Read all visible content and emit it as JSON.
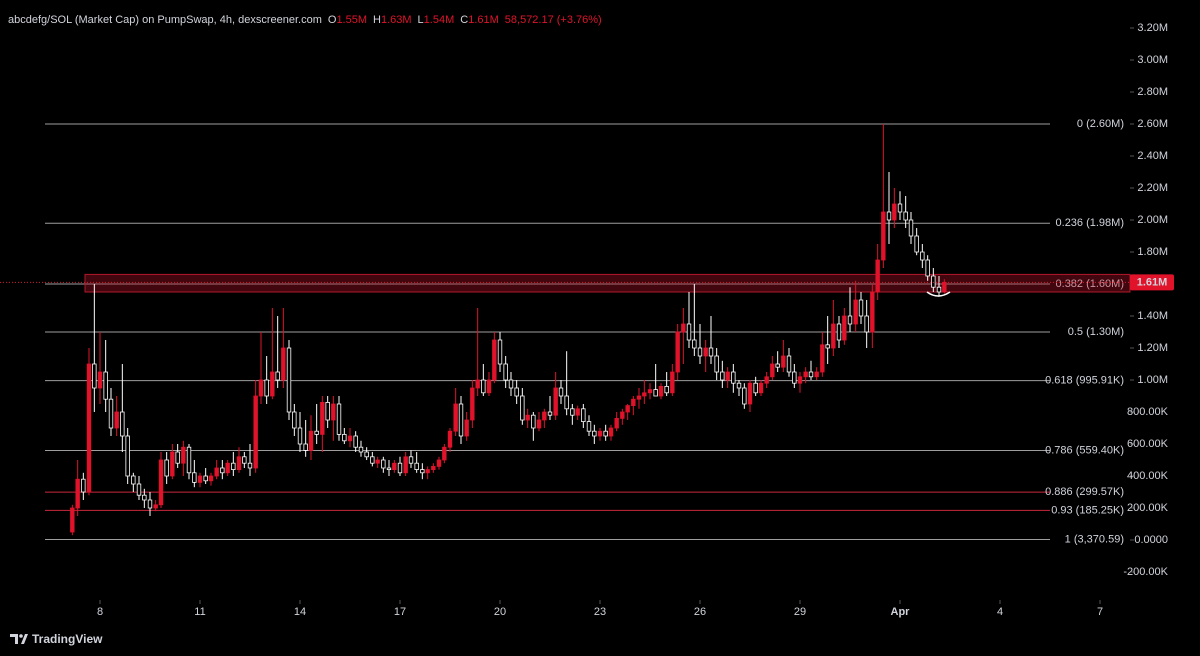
{
  "chart_data": {
    "type": "candlestick",
    "title": "abcdefg/SOL (Market Cap) on PumpSwap, 4h, dexscreener.com",
    "ohlc_labels": [
      {
        "key": "O",
        "text": "1.55M"
      },
      {
        "key": "H",
        "text": "1.63M"
      },
      {
        "key": "L",
        "text": "1.54M"
      },
      {
        "key": "C",
        "text": "1.61M"
      }
    ],
    "change": "58,572.17 (+3.76%)",
    "branding": "TradingView",
    "up_color": "#e0132b",
    "down_color": "#ffffff",
    "grid": false,
    "xlim": [
      5,
      38.9
    ],
    "xticks": [
      8,
      11,
      14,
      17,
      20,
      23,
      26,
      29,
      {
        "value": 32,
        "label": "Apr"
      },
      {
        "value": 35,
        "label": "4"
      },
      {
        "value": 38,
        "label": "7"
      }
    ],
    "ylim": [
      -375000.0,
      3375000.0
    ],
    "yticks": [
      {
        "value": 3200000.0,
        "label": "3.20M"
      },
      {
        "value": 3000000.0,
        "label": "3.00M"
      },
      {
        "value": 2800000.0,
        "label": "2.80M"
      },
      {
        "value": 2600000.0,
        "label": "2.60M"
      },
      {
        "value": 2400000.0,
        "label": "2.40M"
      },
      {
        "value": 2200000.0,
        "label": "2.20M"
      },
      {
        "value": 2000000.0,
        "label": "2.00M"
      },
      {
        "value": 1800000.0,
        "label": "1.80M"
      },
      {
        "value": 1400000.0,
        "label": "1.40M"
      },
      {
        "value": 1200000.0,
        "label": "1.20M"
      },
      {
        "value": 1000000.0,
        "label": "1.00M"
      },
      {
        "value": 800000.0,
        "label": "800.00K"
      },
      {
        "value": 600000.0,
        "label": "600.00K"
      },
      {
        "value": 400000.0,
        "label": "400.00K"
      },
      {
        "value": 200000.0,
        "label": "200.00K"
      },
      {
        "value": 0,
        "label": "0.0000"
      },
      {
        "value": -200000.0,
        "label": "-200.00K"
      }
    ],
    "fib_levels": [
      {
        "value": 2600000.0,
        "label": "0 (2.60M)",
        "color": "#9e9e9e"
      },
      {
        "value": 1980000.0,
        "label": "0.236 (1.98M)",
        "color": "#9e9e9e"
      },
      {
        "value": 1600000.0,
        "label": "0.382 (1.60M)",
        "color": "#9e9e9e"
      },
      {
        "value": 1300000.0,
        "label": "0.5 (1.30M)",
        "color": "#9e9e9e"
      },
      {
        "value": 995910,
        "label": "0.618 (995.91K)",
        "color": "#9e9e9e"
      },
      {
        "value": 559400,
        "label": "0.786 (559.40K)",
        "color": "#9e9e9e"
      },
      {
        "value": 299570,
        "label": "0.886 (299.57K)",
        "color": "#c8283c"
      },
      {
        "value": 185250,
        "label": "0.93 (185.25K)",
        "color": "#c8283c"
      },
      {
        "value": 3370.59,
        "label": "1 (3,370.59)",
        "color": "#9e9e9e"
      }
    ],
    "zone": [
      1550000.0,
      1660000.0
    ],
    "last_price": {
      "value": 1610000.0,
      "label": "1.61M"
    },
    "x": [
      7.17,
      7.33,
      7.5,
      7.67,
      7.83,
      8,
      8.17,
      8.33,
      8.5,
      8.67,
      8.83,
      9,
      9.17,
      9.33,
      9.5,
      9.67,
      9.83,
      10,
      10.17,
      10.33,
      10.5,
      10.67,
      10.83,
      11,
      11.17,
      11.33,
      11.5,
      11.67,
      11.83,
      12,
      12.17,
      12.33,
      12.5,
      12.67,
      12.83,
      13,
      13.17,
      13.33,
      13.5,
      13.67,
      13.83,
      14,
      14.17,
      14.33,
      14.5,
      14.67,
      14.83,
      15,
      15.17,
      15.33,
      15.5,
      15.67,
      15.83,
      16,
      16.17,
      16.33,
      16.5,
      16.67,
      16.83,
      17,
      17.17,
      17.33,
      17.5,
      17.67,
      17.83,
      18,
      18.17,
      18.33,
      18.5,
      18.67,
      18.83,
      19,
      19.17,
      19.33,
      19.5,
      19.67,
      19.83,
      20,
      20.17,
      20.33,
      20.5,
      20.67,
      20.83,
      21,
      21.17,
      21.33,
      21.5,
      21.67,
      21.83,
      22,
      22.17,
      22.33,
      22.5,
      22.67,
      22.83,
      23,
      23.17,
      23.33,
      23.5,
      23.67,
      23.83,
      24,
      24.17,
      24.33,
      24.5,
      24.67,
      24.83,
      25,
      25.17,
      25.33,
      25.5,
      25.67,
      25.83,
      26,
      26.17,
      26.33,
      26.5,
      26.67,
      26.83,
      27,
      27.17,
      27.33,
      27.5,
      27.67,
      27.83,
      28,
      28.17,
      28.33,
      28.5,
      28.67,
      28.83,
      29,
      29.17,
      29.33,
      29.5,
      29.67,
      29.83,
      30,
      30.17,
      30.33,
      30.5,
      30.67,
      30.83,
      31,
      31.17,
      31.33,
      31.5,
      31.67,
      31.83,
      32,
      32.17,
      32.33,
      32.5,
      32.67,
      32.83,
      33,
      33.17,
      33.33
    ],
    "ohlc": [
      [
        50000.0,
        220000.0,
        30000.0,
        200000.0
      ],
      [
        200000.0,
        500000.0,
        150000.0,
        380000.0
      ],
      [
        380000.0,
        420000.0,
        250000.0,
        300000.0
      ],
      [
        300000.0,
        1200000.0,
        280000.0,
        1100000.0
      ],
      [
        1100000.0,
        1600000.0,
        800000.0,
        950000.0
      ],
      [
        950000.0,
        1300000.0,
        850000.0,
        1050000.0
      ],
      [
        1050000.0,
        1250000.0,
        800000.0,
        880000.0
      ],
      [
        880000.0,
        950000.0,
        650000.0,
        700000.0
      ],
      [
        700000.0,
        900000.0,
        650000.0,
        800000.0
      ],
      [
        800000.0,
        1100000.0,
        550000.0,
        650000.0
      ],
      [
        650000.0,
        700000.0,
        350000.0,
        400000.0
      ],
      [
        400000.0,
        420000.0,
        300000.0,
        350000.0
      ],
      [
        350000.0,
        400000.0,
        250000.0,
        280000.0
      ],
      [
        280000.0,
        320000.0,
        200000.0,
        250000.0
      ],
      [
        250000.0,
        300000.0,
        150000.0,
        200000.0
      ],
      [
        200000.0,
        250000.0,
        180000.0,
        220000.0
      ],
      [
        220000.0,
        550000.0,
        200000.0,
        500000.0
      ],
      [
        500000.0,
        550000.0,
        350000.0,
        400000.0
      ],
      [
        400000.0,
        600000.0,
        380000.0,
        550000.0
      ],
      [
        550000.0,
        600000.0,
        450000.0,
        480000.0
      ],
      [
        480000.0,
        620000.0,
        400000.0,
        580000.0
      ],
      [
        580000.0,
        600000.0,
        380000.0,
        420000.0
      ],
      [
        420000.0,
        500000.0,
        330000.0,
        360000.0
      ],
      [
        360000.0,
        420000.0,
        330000.0,
        400000.0
      ],
      [
        400000.0,
        450000.0,
        350000.0,
        370000.0
      ],
      [
        370000.0,
        420000.0,
        340000.0,
        400000.0
      ],
      [
        400000.0,
        500000.0,
        380000.0,
        450000.0
      ],
      [
        450000.0,
        500000.0,
        380000.0,
        420000.0
      ],
      [
        420000.0,
        500000.0,
        400000.0,
        480000.0
      ],
      [
        480000.0,
        550000.0,
        400000.0,
        440000.0
      ],
      [
        440000.0,
        580000.0,
        420000.0,
        520000.0
      ],
      [
        520000.0,
        550000.0,
        450000.0,
        480000.0
      ],
      [
        480000.0,
        600000.0,
        400000.0,
        450000.0
      ],
      [
        450000.0,
        1000000.0,
        420000.0,
        900000.0
      ],
      [
        900000.0,
        1300000.0,
        850000.0,
        1000000.0
      ],
      [
        1000000.0,
        1150000.0,
        850000.0,
        900000.0
      ],
      [
        900000.0,
        1450000.0,
        880000.0,
        1050000.0
      ],
      [
        1050000.0,
        1400000.0,
        950000.0,
        1000000.0
      ],
      [
        1000000.0,
        1450000.0,
        950000.0,
        1200000.0
      ],
      [
        1200000.0,
        1250000.0,
        750000.0,
        800000.0
      ],
      [
        800000.0,
        850000.0,
        650000.0,
        700000.0
      ],
      [
        700000.0,
        800000.0,
        550000.0,
        600000.0
      ],
      [
        600000.0,
        750000.0,
        520000.0,
        560000.0
      ],
      [
        560000.0,
        780000.0,
        500000.0,
        680000.0
      ],
      [
        680000.0,
        850000.0,
        600000.0,
        660000.0
      ],
      [
        660000.0,
        900000.0,
        550000.0,
        860000.0
      ],
      [
        860000.0,
        900000.0,
        700000.0,
        750000.0
      ],
      [
        750000.0,
        900000.0,
        620000.0,
        850000.0
      ],
      [
        850000.0,
        900000.0,
        620000.0,
        660000.0
      ],
      [
        660000.0,
        700000.0,
        600000.0,
        620000.0
      ],
      [
        620000.0,
        700000.0,
        580000.0,
        650000.0
      ],
      [
        650000.0,
        680000.0,
        550000.0,
        580000.0
      ],
      [
        580000.0,
        620000.0,
        520000.0,
        550000.0
      ],
      [
        550000.0,
        580000.0,
        500000.0,
        520000.0
      ],
      [
        520000.0,
        550000.0,
        460000.0,
        480000.0
      ],
      [
        480000.0,
        520000.0,
        450000.0,
        500000.0
      ],
      [
        500000.0,
        520000.0,
        420000.0,
        450000.0
      ],
      [
        450000.0,
        500000.0,
        400000.0,
        440000.0
      ],
      [
        440000.0,
        500000.0,
        420000.0,
        480000.0
      ],
      [
        480000.0,
        520000.0,
        400000.0,
        420000.0
      ],
      [
        420000.0,
        550000.0,
        400000.0,
        520000.0
      ],
      [
        520000.0,
        560000.0,
        450000.0,
        480000.0
      ],
      [
        480000.0,
        550000.0,
        420000.0,
        440000.0
      ],
      [
        440000.0,
        480000.0,
        380000.0,
        420000.0
      ],
      [
        420000.0,
        460000.0,
        380000.0,
        440000.0
      ],
      [
        440000.0,
        480000.0,
        420000.0,
        460000.0
      ],
      [
        460000.0,
        520000.0,
        440000.0,
        500000.0
      ],
      [
        500000.0,
        600000.0,
        480000.0,
        580000.0
      ],
      [
        580000.0,
        700000.0,
        550000.0,
        680000.0
      ],
      [
        680000.0,
        950000.0,
        650000.0,
        850000.0
      ],
      [
        850000.0,
        900000.0,
        600000.0,
        650000.0
      ],
      [
        650000.0,
        800000.0,
        620000.0,
        750000.0
      ],
      [
        750000.0,
        1000000.0,
        700000.0,
        950000.0
      ],
      [
        950000.0,
        1450000.0,
        900000.0,
        1000000.0
      ],
      [
        1000000.0,
        1100000.0,
        900000.0,
        920000.0
      ],
      [
        920000.0,
        1050000.0,
        900000.0,
        1000000.0
      ],
      [
        1000000.0,
        1300000.0,
        980000.0,
        1250000.0
      ],
      [
        1250000.0,
        1300000.0,
        1050000.0,
        1100000.0
      ],
      [
        1100000.0,
        1150000.0,
        950000.0,
        1000000.0
      ],
      [
        1000000.0,
        1050000.0,
        900000.0,
        950000.0
      ],
      [
        950000.0,
        1000000.0,
        850000.0,
        900000.0
      ],
      [
        900000.0,
        950000.0,
        720000.0,
        750000.0
      ],
      [
        750000.0,
        820000.0,
        700000.0,
        780000.0
      ],
      [
        780000.0,
        800000.0,
        620000.0,
        700000.0
      ],
      [
        700000.0,
        800000.0,
        680000.0,
        750000.0
      ],
      [
        750000.0,
        820000.0,
        700000.0,
        800000.0
      ],
      [
        800000.0,
        900000.0,
        750000.0,
        780000.0
      ],
      [
        780000.0,
        1050000.0,
        750000.0,
        950000.0
      ],
      [
        950000.0,
        1000000.0,
        850000.0,
        900000.0
      ],
      [
        900000.0,
        1180000.0,
        780000.0,
        820000.0
      ],
      [
        820000.0,
        850000.0,
        720000.0,
        780000.0
      ],
      [
        780000.0,
        840000.0,
        750000.0,
        820000.0
      ],
      [
        820000.0,
        850000.0,
        700000.0,
        740000.0
      ],
      [
        740000.0,
        780000.0,
        650000.0,
        680000.0
      ],
      [
        680000.0,
        720000.0,
        600000.0,
        650000.0
      ],
      [
        650000.0,
        700000.0,
        620000.0,
        680000.0
      ],
      [
        680000.0,
        720000.0,
        620000.0,
        650000.0
      ],
      [
        650000.0,
        720000.0,
        620000.0,
        700000.0
      ],
      [
        700000.0,
        800000.0,
        680000.0,
        760000.0
      ],
      [
        760000.0,
        820000.0,
        720000.0,
        800000.0
      ],
      [
        800000.0,
        850000.0,
        750000.0,
        840000.0
      ],
      [
        840000.0,
        900000.0,
        780000.0,
        880000.0
      ],
      [
        880000.0,
        950000.0,
        820000.0,
        900000.0
      ],
      [
        900000.0,
        1000000.0,
        850000.0,
        920000.0
      ],
      [
        920000.0,
        980000.0,
        880000.0,
        940000.0
      ],
      [
        940000.0,
        1100000.0,
        900000.0,
        900000.0
      ],
      [
        900000.0,
        980000.0,
        880000.0,
        960000.0
      ],
      [
        960000.0,
        1050000.0,
        900000.0,
        920000.0
      ],
      [
        920000.0,
        1100000.0,
        900000.0,
        1050000.0
      ],
      [
        1050000.0,
        1350000.0,
        1000000.0,
        1300000.0
      ],
      [
        1300000.0,
        1450000.0,
        1100000.0,
        1350000.0
      ],
      [
        1350000.0,
        1550000.0,
        1200000.0,
        1250000.0
      ],
      [
        1250000.0,
        1600000.0,
        1150000.0,
        1200000.0
      ],
      [
        1200000.0,
        1350000.0,
        1100000.0,
        1150000.0
      ],
      [
        1150000.0,
        1250000.0,
        1050000.0,
        1200000.0
      ],
      [
        1200000.0,
        1400000.0,
        1100000.0,
        1150000.0
      ],
      [
        1150000.0,
        1200000.0,
        1000000.0,
        1050000.0
      ],
      [
        1050000.0,
        1120000.0,
        950000.0,
        1000000.0
      ],
      [
        1000000.0,
        1080000.0,
        950000.0,
        1050000.0
      ],
      [
        1050000.0,
        1100000.0,
        920000.0,
        980000.0
      ],
      [
        980000.0,
        1000000.0,
        900000.0,
        950000.0
      ],
      [
        950000.0,
        980000.0,
        820000.0,
        850000.0
      ],
      [
        850000.0,
        1000000.0,
        800000.0,
        980000.0
      ],
      [
        980000.0,
        1020000.0,
        900000.0,
        920000.0
      ],
      [
        920000.0,
        1000000.0,
        900000.0,
        980000.0
      ],
      [
        980000.0,
        1050000.0,
        950000.0,
        1020000.0
      ],
      [
        1020000.0,
        1150000.0,
        1000000.0,
        1100000.0
      ],
      [
        1100000.0,
        1180000.0,
        1050000.0,
        1080000.0
      ],
      [
        1080000.0,
        1250000.0,
        1050000.0,
        1150000.0
      ],
      [
        1150000.0,
        1200000.0,
        1020000.0,
        1050000.0
      ],
      [
        1050000.0,
        1100000.0,
        950000.0,
        980000.0
      ],
      [
        980000.0,
        1050000.0,
        920000.0,
        1020000.0
      ],
      [
        1020000.0,
        1080000.0,
        980000.0,
        1050000.0
      ],
      [
        1050000.0,
        1120000.0,
        1000000.0,
        1020000.0
      ],
      [
        1020000.0,
        1080000.0,
        1000000.0,
        1050000.0
      ],
      [
        1050000.0,
        1300000.0,
        1020000.0,
        1220000.0
      ],
      [
        1220000.0,
        1400000.0,
        1100000.0,
        1200000.0
      ],
      [
        1200000.0,
        1500000.0,
        1150000.0,
        1350000.0
      ],
      [
        1350000.0,
        1400000.0,
        1200000.0,
        1250000.0
      ],
      [
        1250000.0,
        1450000.0,
        1220000.0,
        1400000.0
      ],
      [
        1400000.0,
        1580000.0,
        1300000.0,
        1350000.0
      ],
      [
        1350000.0,
        1620000.0,
        1300000.0,
        1500000.0
      ],
      [
        1500000.0,
        1550000.0,
        1350000.0,
        1400000.0
      ],
      [
        1400000.0,
        1500000.0,
        1200000.0,
        1300000.0
      ],
      [
        1300000.0,
        1600000.0,
        1200000.0,
        1550000.0
      ],
      [
        1550000.0,
        1850000.0,
        1500000.0,
        1750000.0
      ],
      [
        1750000.0,
        2600000.0,
        1700000.0,
        2050000.0
      ],
      [
        2050000.0,
        2300000.0,
        1850000.0,
        2000000.0
      ],
      [
        2000000.0,
        2200000.0,
        1950000.0,
        2100000.0
      ],
      [
        2100000.0,
        2180000.0,
        2000000.0,
        2050000.0
      ],
      [
        2050000.0,
        2150000.0,
        1950000.0,
        2000000.0
      ],
      [
        2000000.0,
        2050000.0,
        1850000.0,
        1900000.0
      ],
      [
        1900000.0,
        1950000.0,
        1780000.0,
        1800000.0
      ],
      [
        1800000.0,
        1850000.0,
        1700000.0,
        1750000.0
      ],
      [
        1750000.0,
        1780000.0,
        1620000.0,
        1650000.0
      ],
      [
        1650000.0,
        1700000.0,
        1550000.0,
        1580000.0
      ],
      [
        1580000.0,
        1650000.0,
        1520000.0,
        1550000.0
      ],
      [
        1550000.0,
        1630000.0,
        1540000.0,
        1610000.0
      ]
    ]
  }
}
